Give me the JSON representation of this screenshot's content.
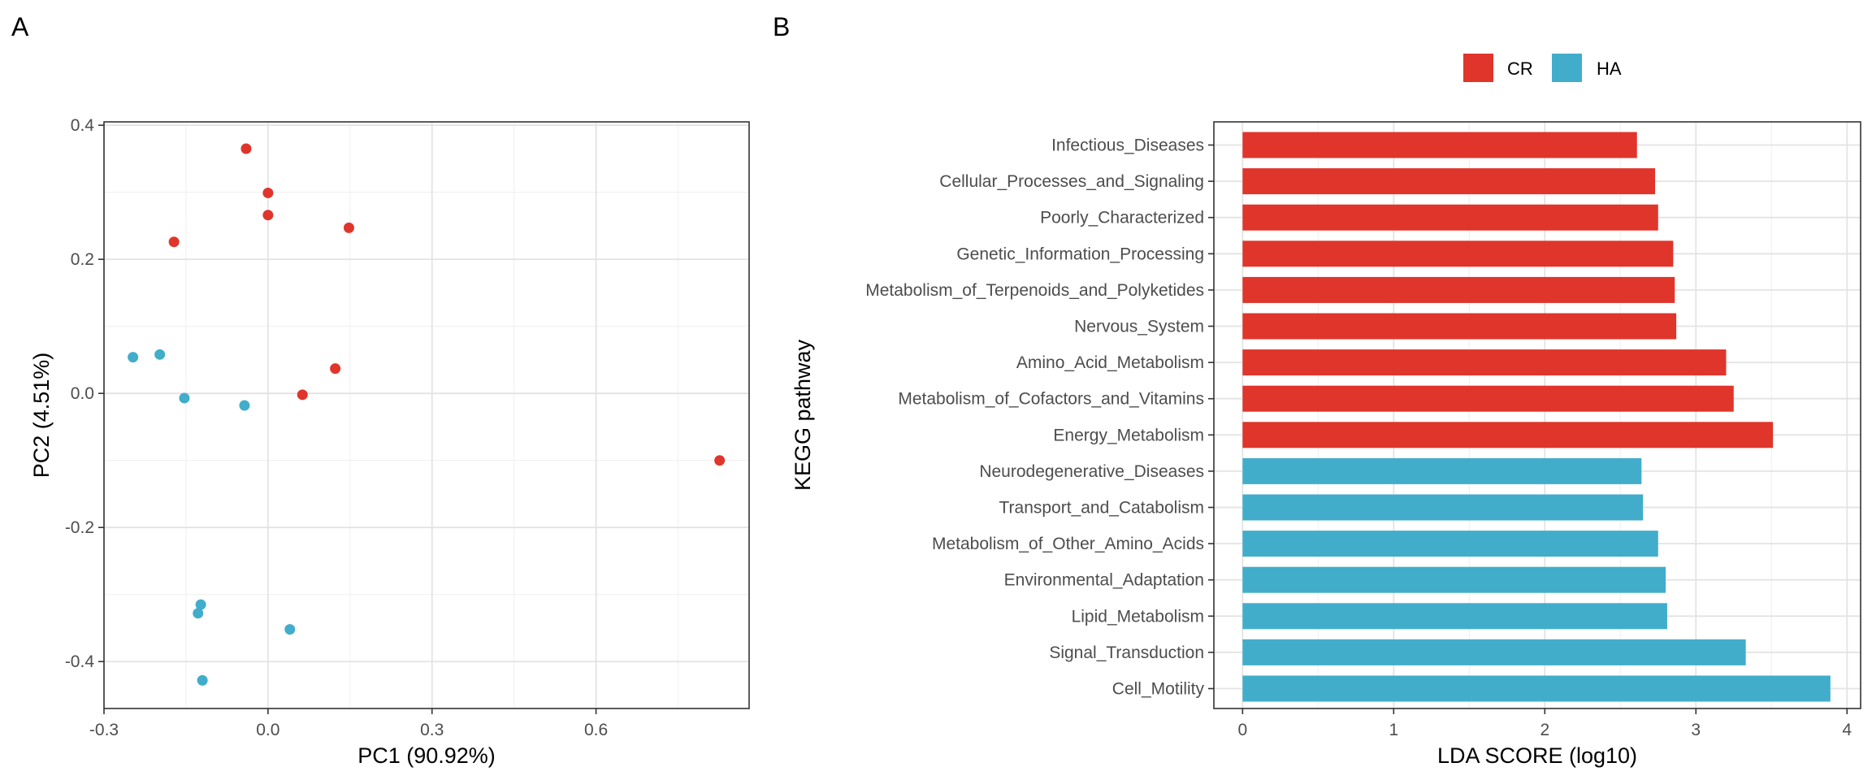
{
  "panels": {
    "a": {
      "tag": "A"
    },
    "b": {
      "tag": "B"
    }
  },
  "colors": {
    "CR": "#e0352b",
    "HA": "#41adcb"
  },
  "chart_data": [
    {
      "type": "scatter",
      "xlabel": "PC1 (90.92%)",
      "ylabel": "PC2 (4.51%)",
      "xlim": [
        -0.3,
        0.88
      ],
      "ylim": [
        -0.47,
        0.405
      ],
      "xticks": [
        -0.3,
        0.0,
        0.3,
        0.6
      ],
      "xtick_labels": [
        "-0.3",
        "0.0",
        "0.3",
        "0.6"
      ],
      "yticks": [
        -0.4,
        -0.2,
        0.0,
        0.2,
        0.4
      ],
      "ytick_labels": [
        "-0.4",
        "-0.2",
        "0.0",
        "0.2",
        "0.4"
      ],
      "grid": true,
      "series": [
        {
          "group": "CR",
          "points": [
            [
              -0.04,
              0.365
            ],
            [
              0.0,
              0.299
            ],
            [
              0.0,
              0.266
            ],
            [
              0.148,
              0.247
            ],
            [
              -0.172,
              0.226
            ],
            [
              0.123,
              0.037
            ],
            [
              0.063,
              -0.002
            ],
            [
              0.826,
              -0.1
            ]
          ]
        },
        {
          "group": "HA",
          "points": [
            [
              -0.247,
              0.054
            ],
            [
              -0.198,
              0.058
            ],
            [
              -0.153,
              -0.007
            ],
            [
              -0.043,
              -0.018
            ],
            [
              -0.123,
              -0.315
            ],
            [
              -0.128,
              -0.328
            ],
            [
              0.04,
              -0.352
            ],
            [
              -0.12,
              -0.428
            ]
          ]
        }
      ]
    },
    {
      "type": "bar",
      "orientation": "horizontal",
      "xlabel": "LDA SCORE (log10)",
      "ylabel": "KEGG pathway",
      "xlim": [
        -0.19,
        4.09
      ],
      "xticks": [
        0,
        1,
        2,
        3,
        4
      ],
      "xtick_labels": [
        "0",
        "1",
        "2",
        "3",
        "4"
      ],
      "grid": true,
      "legend": {
        "position": "top",
        "entries": [
          {
            "label": "CR",
            "group": "CR"
          },
          {
            "label": "HA",
            "group": "HA"
          }
        ]
      },
      "categories": [
        "Infectious_Diseases",
        "Cellular_Processes_and_Signaling",
        "Poorly_Characterized",
        "Genetic_Information_Processing",
        "Metabolism_of_Terpenoids_and_Polyketides",
        "Nervous_System",
        "Amino_Acid_Metabolism",
        "Metabolism_of_Cofactors_and_Vitamins",
        "Energy_Metabolism",
        "Neurodegenerative_Diseases",
        "Transport_and_Catabolism",
        "Metabolism_of_Other_Amino_Acids",
        "Environmental_Adaptation",
        "Lipid_Metabolism",
        "Signal_Transduction",
        "Cell_Motility"
      ],
      "values": [
        2.61,
        2.73,
        2.75,
        2.85,
        2.86,
        2.87,
        3.2,
        3.25,
        3.51,
        2.64,
        2.65,
        2.75,
        2.8,
        2.81,
        3.33,
        3.89
      ],
      "groups": [
        "CR",
        "CR",
        "CR",
        "CR",
        "CR",
        "CR",
        "CR",
        "CR",
        "CR",
        "HA",
        "HA",
        "HA",
        "HA",
        "HA",
        "HA",
        "HA"
      ]
    }
  ]
}
